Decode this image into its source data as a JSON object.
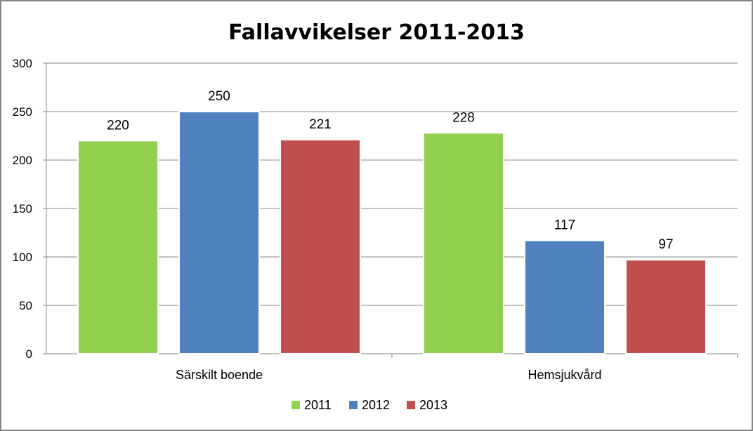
{
  "chart_data": {
    "type": "bar",
    "title": "Fallavvikelser 2011-2013",
    "xlabel": "",
    "ylabel": "",
    "categories": [
      "Särskilt boende",
      "Hemsjukvård"
    ],
    "series": [
      {
        "name": "2011",
        "values": [
          220,
          228
        ],
        "color": "#92D050"
      },
      {
        "name": "2012",
        "values": [
          250,
          117
        ],
        "color": "#4F81BD"
      },
      {
        "name": "2013",
        "values": [
          221,
          97
        ],
        "color": "#C0504D"
      }
    ],
    "ylim": [
      0,
      300
    ],
    "yticks": [
      0,
      50,
      100,
      150,
      200,
      250,
      300
    ],
    "grid": true,
    "legend": "bottom",
    "data_labels": true
  }
}
